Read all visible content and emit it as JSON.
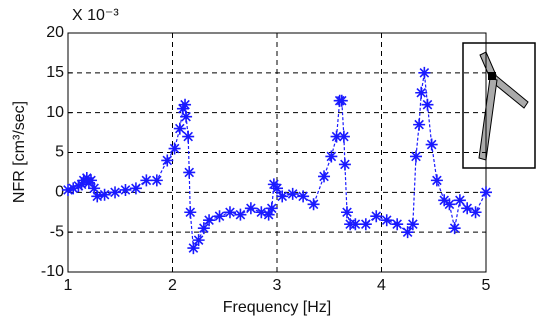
{
  "chart_data": {
    "type": "line",
    "xlabel": "Frequency [Hz]",
    "ylabel": "NFR [cm³/sec]",
    "multiplier": "X 10⁻³",
    "xlim": [
      1,
      5
    ],
    "xticks": [
      1,
      2,
      3,
      4,
      5
    ],
    "ylim": [
      -10,
      20
    ],
    "yticks": [
      -10,
      -5,
      0,
      5,
      10,
      15,
      20
    ],
    "grid": true,
    "color": "#1a1aff",
    "x": [
      1.0,
      1.05,
      1.1,
      1.13,
      1.15,
      1.18,
      1.2,
      1.22,
      1.25,
      1.28,
      1.35,
      1.45,
      1.55,
      1.65,
      1.75,
      1.85,
      1.95,
      2.02,
      2.07,
      2.1,
      2.12,
      2.13,
      2.15,
      2.16,
      2.17,
      2.2,
      2.25,
      2.3,
      2.35,
      2.45,
      2.55,
      2.65,
      2.75,
      2.85,
      2.92,
      2.95,
      2.97,
      3.0,
      3.05,
      3.15,
      3.25,
      3.35,
      3.45,
      3.52,
      3.57,
      3.6,
      3.62,
      3.64,
      3.65,
      3.67,
      3.7,
      3.75,
      3.85,
      3.95,
      4.05,
      4.15,
      4.25,
      4.3,
      4.33,
      4.36,
      4.38,
      4.41,
      4.44,
      4.48,
      4.53,
      4.6,
      4.65,
      4.7,
      4.75,
      4.82,
      4.9,
      5.0
    ],
    "values": [
      0.3,
      0.5,
      0.8,
      1.0,
      1.5,
      1.8,
      1.2,
      1.5,
      0.5,
      -0.5,
      -0.3,
      0,
      0.3,
      0.5,
      1.5,
      1.5,
      4,
      5.5,
      8,
      10.5,
      11,
      9.5,
      7,
      2.5,
      -2.5,
      -7,
      -6,
      -4.5,
      -3.5,
      -3,
      -2.5,
      -2.8,
      -2,
      -2.5,
      -2.8,
      -2,
      1,
      0.5,
      -0.5,
      -0.2,
      -0.5,
      -1.5,
      2,
      4.5,
      7,
      11.5,
      11.5,
      7,
      3.5,
      -2.5,
      -4,
      -4,
      -4,
      -3,
      -3.5,
      -4,
      -5,
      -4,
      4.5,
      8.5,
      12.5,
      15,
      11,
      6,
      1.5,
      -1,
      -1.5,
      -4.5,
      -1,
      -2,
      -2.5,
      0
    ]
  }
}
